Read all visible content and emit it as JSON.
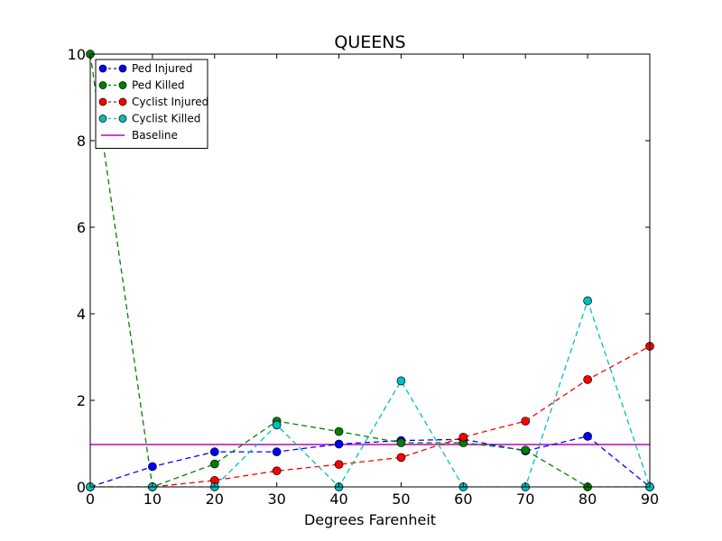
{
  "chart_data": {
    "type": "line",
    "title": "QUEENS",
    "xlabel": "Degrees Farenheit",
    "ylabel": "",
    "xlim": [
      0,
      90
    ],
    "ylim": [
      0,
      10
    ],
    "xticks": [
      0,
      10,
      20,
      30,
      40,
      50,
      60,
      70,
      80,
      90
    ],
    "yticks": [
      0,
      2,
      4,
      6,
      8,
      10
    ],
    "grid": false,
    "legend_position": "top-left",
    "x": [
      0,
      10,
      20,
      30,
      40,
      50,
      60,
      70,
      80,
      90
    ],
    "series": [
      {
        "name": "Ped Injured",
        "color": "#0000ff",
        "style": "dashed-with-markers",
        "values": [
          0,
          0.47,
          0.81,
          0.81,
          0.99,
          1.07,
          1.1,
          0.83,
          1.17,
          0
        ]
      },
      {
        "name": "Ped Killed",
        "color": "#008000",
        "style": "dashed-with-markers",
        "values": [
          10,
          0,
          0.53,
          1.52,
          1.28,
          1.02,
          1.02,
          0.85,
          0,
          0
        ]
      },
      {
        "name": "Cyclist Injured",
        "color": "#ff0000",
        "style": "dashed-with-markers",
        "values": [
          0,
          0,
          0.15,
          0.37,
          0.52,
          0.68,
          1.15,
          1.52,
          2.48,
          3.25
        ]
      },
      {
        "name": "Cyclist Killed",
        "color": "#00bfbf",
        "style": "dashed-with-markers",
        "values": [
          0,
          0,
          0,
          1.43,
          0,
          2.45,
          0,
          0,
          4.3,
          0
        ]
      }
    ],
    "baseline": {
      "name": "Baseline",
      "color": "#bf00bf",
      "value": 0.98
    }
  }
}
